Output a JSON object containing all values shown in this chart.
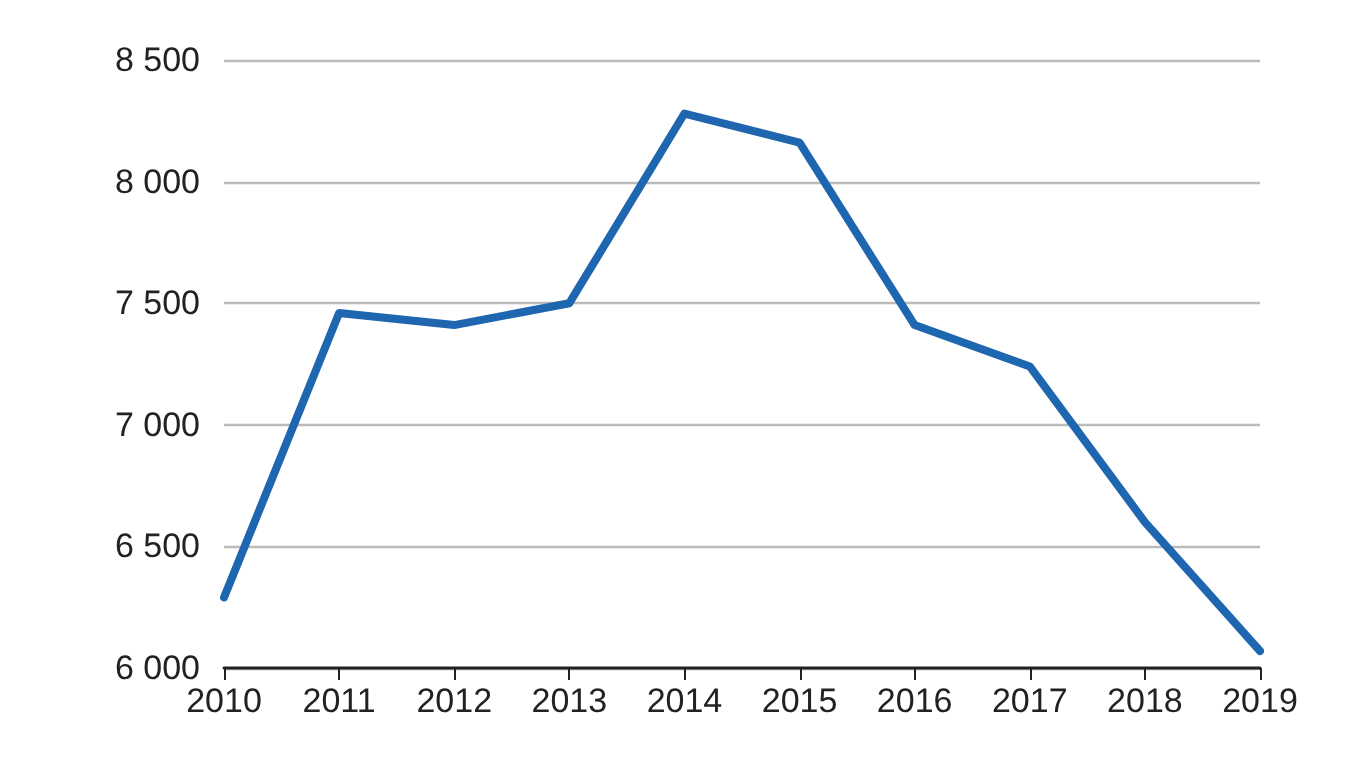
{
  "chart_data": {
    "type": "line",
    "categories": [
      "2010",
      "2011",
      "2012",
      "2013",
      "2014",
      "2015",
      "2016",
      "2017",
      "2018",
      "2019"
    ],
    "series": [
      {
        "color": "#1f66b0",
        "values": [
          6290,
          7460,
          7410,
          7500,
          8280,
          8160,
          7410,
          7240,
          6600,
          6070
        ]
      }
    ],
    "ylim": [
      6000,
      8500
    ],
    "yticks": [
      {
        "value": 6000,
        "label": "6 000"
      },
      {
        "value": 6500,
        "label": "6 500"
      },
      {
        "value": 7000,
        "label": "7 000"
      },
      {
        "value": 7500,
        "label": "7 500"
      },
      {
        "value": 8000,
        "label": "8 000"
      },
      {
        "value": 8500,
        "label": "8 500"
      }
    ],
    "grid": "y",
    "marker": "none",
    "line_style": "solid"
  }
}
